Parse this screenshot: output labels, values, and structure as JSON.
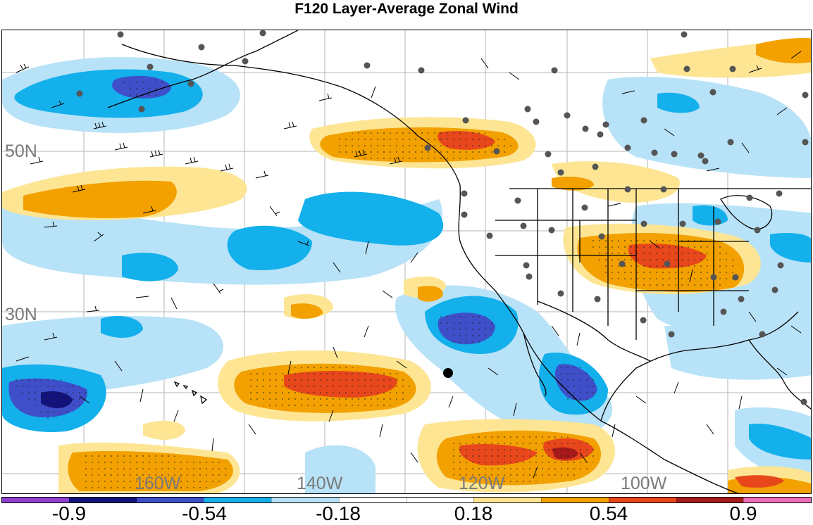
{
  "title": "F120 Layer-Average Zonal Wind",
  "latitude_labels": [
    "50N",
    "30N"
  ],
  "longitude_labels": [
    "160W",
    "140W",
    "120W",
    "100W"
  ],
  "colorbar": {
    "colors": [
      "#8f3fd0",
      "#12127a",
      "#3f4fc9",
      "#13b0ec",
      "#b8e2f7",
      "#ffffff",
      "#ffffff",
      "#fde593",
      "#f2a100",
      "#e8471c",
      "#a61a1a",
      "#ee6fb8"
    ],
    "tick_labels": [
      "-0.9",
      "-0.54",
      "-0.18",
      "0.18",
      "0.54",
      "0.9"
    ]
  },
  "map_layers": {
    "contour_fill": "zonal wind",
    "overlays": [
      "wind barbs",
      "station dots",
      "coastlines",
      "state and country borders"
    ]
  }
}
